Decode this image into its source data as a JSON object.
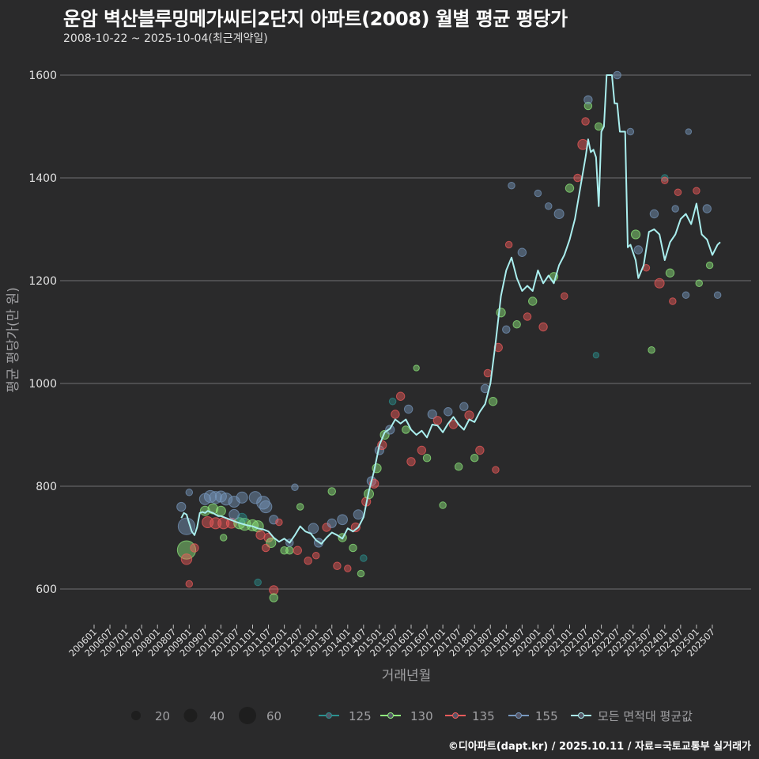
{
  "title": "운암 벽산블루밍메가씨티2단지 아파트(2008) 월별 평균 평당가",
  "subtitle": "2008-10-22 ~ 2025-10-04(최근계약일)",
  "footer": "©디아파트(dapt.kr) / 2025.10.11 / 자료=국토교통부 실거래가",
  "colors": {
    "background": "#2a2a2b",
    "grid": "#707073",
    "text": "#e0e0e0",
    "axis_label": "#a0a0a3",
    "125": "#2b908f",
    "130": "#90ee7e",
    "135": "#f45b5b",
    "155": "#7798bf",
    "avg": "#aaeeee"
  },
  "chart_data": {
    "type": "scatter+line",
    "title": "운암 벽산블루밍메가씨티2단지 아파트(2008) 월별 평균 평당가",
    "subtitle": "2008-10-22 ~ 2025-10-04(최근계약일)",
    "xlabel": "거래년월",
    "ylabel": "평균 평당가(만 원)",
    "ylim": [
      540,
      1620
    ],
    "yticks": [
      600,
      800,
      1000,
      1200,
      1400,
      1600
    ],
    "grid": true,
    "legend_position": "bottom",
    "x_ticks": [
      "200601",
      "200607",
      "200701",
      "200707",
      "200801",
      "200807",
      "200901",
      "200907",
      "201001",
      "201007",
      "201101",
      "201107",
      "201201",
      "201207",
      "201301",
      "201307",
      "201401",
      "201407",
      "201501",
      "201507",
      "201601",
      "201607",
      "201701",
      "201707",
      "201801",
      "201807",
      "201901",
      "201907",
      "202001",
      "202007",
      "202101",
      "202107",
      "202201",
      "202207",
      "202301",
      "202307",
      "202401",
      "202407",
      "202501",
      "202507"
    ],
    "size_legend": {
      "title": "",
      "values": [
        20,
        40,
        60
      ]
    },
    "series_legend": [
      {
        "name": "125",
        "key": "125"
      },
      {
        "name": "130",
        "key": "130"
      },
      {
        "name": "135",
        "key": "135"
      },
      {
        "name": "155",
        "key": "155"
      },
      {
        "name": "모든 면적대 평균값",
        "key": "avg"
      }
    ],
    "average_line": {
      "name": "모든 면적대 평균값",
      "x": [
        "200810",
        "200811",
        "200812",
        "200901",
        "200902",
        "200903",
        "200904",
        "200905",
        "200906",
        "200907",
        "200908",
        "200909",
        "200910",
        "200911",
        "200912",
        "201001",
        "201003",
        "201005",
        "201007",
        "201009",
        "201011",
        "201101",
        "201103",
        "201105",
        "201107",
        "201109",
        "201111",
        "201201",
        "201203",
        "201205",
        "201207",
        "201209",
        "201211",
        "201301",
        "201303",
        "201305",
        "201307",
        "201309",
        "201311",
        "201401",
        "201403",
        "201405",
        "201407",
        "201409",
        "201411",
        "201501",
        "201503",
        "201505",
        "201507",
        "201509",
        "201511",
        "201601",
        "201603",
        "201605",
        "201607",
        "201609",
        "201611",
        "201701",
        "201703",
        "201705",
        "201707",
        "201709",
        "201711",
        "201801",
        "201803",
        "201805",
        "201807",
        "201809",
        "201811",
        "201901",
        "201903",
        "201905",
        "201907",
        "201909",
        "201911",
        "202001",
        "202003",
        "202005",
        "202007",
        "202009",
        "202011",
        "202101",
        "202103",
        "202105",
        "202107",
        "202108",
        "202109",
        "202110",
        "202111",
        "202112",
        "202201",
        "202202",
        "202203",
        "202204",
        "202205",
        "202206",
        "202207",
        "202208",
        "202209",
        "202210",
        "202211",
        "202212",
        "202301",
        "202302",
        "202303",
        "202305",
        "202307",
        "202309",
        "202311",
        "202401",
        "202403",
        "202405",
        "202407",
        "202409",
        "202411",
        "202412",
        "202501",
        "202503",
        "202505",
        "202507",
        "202509",
        "202510"
      ],
      "y": [
        738,
        748,
        745,
        728,
        712,
        705,
        720,
        748,
        750,
        748,
        752,
        750,
        748,
        745,
        742,
        742,
        738,
        734,
        730,
        727,
        724,
        722,
        718,
        716,
        712,
        700,
        692,
        698,
        690,
        705,
        722,
        712,
        708,
        695,
        688,
        700,
        710,
        705,
        698,
        718,
        712,
        720,
        740,
        790,
        830,
        880,
        905,
        912,
        930,
        922,
        930,
        910,
        900,
        908,
        895,
        920,
        918,
        905,
        922,
        935,
        920,
        910,
        930,
        925,
        945,
        960,
        1000,
        1080,
        1170,
        1220,
        1245,
        1205,
        1180,
        1190,
        1180,
        1220,
        1195,
        1210,
        1195,
        1230,
        1250,
        1280,
        1320,
        1380,
        1440,
        1475,
        1450,
        1455,
        1440,
        1345,
        1490,
        1500,
        1600,
        1600,
        1600,
        1545,
        1545,
        1490,
        1490,
        1490,
        1265,
        1270,
        1255,
        1240,
        1205,
        1230,
        1295,
        1300,
        1290,
        1240,
        1275,
        1290,
        1320,
        1330,
        1310,
        1330,
        1350,
        1290,
        1280,
        1250,
        1270,
        1275
      ],
      "ranges_comment": "values read off gridlines"
    },
    "scatter": [
      {
        "series": "155",
        "x": "200810",
        "y": 760,
        "size": 14
      },
      {
        "series": "155",
        "x": "200812",
        "y": 722,
        "size": 50
      },
      {
        "series": "130",
        "x": "200812",
        "y": 676,
        "size": 60
      },
      {
        "series": "135",
        "x": "200812",
        "y": 658,
        "size": 20
      },
      {
        "series": "135",
        "x": "200901",
        "y": 610,
        "size": 8
      },
      {
        "series": "155",
        "x": "200901",
        "y": 788,
        "size": 8
      },
      {
        "series": "135",
        "x": "200903",
        "y": 680,
        "size": 12
      },
      {
        "series": "155",
        "x": "200907",
        "y": 775,
        "size": 22
      },
      {
        "series": "155",
        "x": "200909",
        "y": 780,
        "size": 26
      },
      {
        "series": "155",
        "x": "200911",
        "y": 778,
        "size": 26
      },
      {
        "series": "155",
        "x": "201001",
        "y": 780,
        "size": 22
      },
      {
        "series": "155",
        "x": "201003",
        "y": 775,
        "size": 26
      },
      {
        "series": "130",
        "x": "200907",
        "y": 752,
        "size": 16
      },
      {
        "series": "130",
        "x": "200910",
        "y": 756,
        "size": 18
      },
      {
        "series": "130",
        "x": "201001",
        "y": 752,
        "size": 16
      },
      {
        "series": "135",
        "x": "200908",
        "y": 730,
        "size": 22
      },
      {
        "series": "135",
        "x": "200911",
        "y": 728,
        "size": 22
      },
      {
        "series": "135",
        "x": "201002",
        "y": 728,
        "size": 22
      },
      {
        "series": "135",
        "x": "201005",
        "y": 728,
        "size": 18
      },
      {
        "series": "155",
        "x": "201006",
        "y": 770,
        "size": 22
      },
      {
        "series": "155",
        "x": "201009",
        "y": 778,
        "size": 22
      },
      {
        "series": "155",
        "x": "201102",
        "y": 778,
        "size": 26
      },
      {
        "series": "155",
        "x": "201105",
        "y": 768,
        "size": 30
      },
      {
        "series": "155",
        "x": "201106",
        "y": 760,
        "size": 26
      },
      {
        "series": "130",
        "x": "201008",
        "y": 728,
        "size": 22
      },
      {
        "series": "130",
        "x": "201010",
        "y": 726,
        "size": 26
      },
      {
        "series": "130",
        "x": "201101",
        "y": 724,
        "size": 22
      },
      {
        "series": "130",
        "x": "201103",
        "y": 722,
        "size": 22
      },
      {
        "series": "125",
        "x": "201009",
        "y": 738,
        "size": 16
      },
      {
        "series": "135",
        "x": "201104",
        "y": 705,
        "size": 14
      },
      {
        "series": "135",
        "x": "201107",
        "y": 700,
        "size": 14
      },
      {
        "series": "130",
        "x": "201108",
        "y": 690,
        "size": 16
      },
      {
        "series": "135",
        "x": "201106",
        "y": 680,
        "size": 10
      },
      {
        "series": "130",
        "x": "201002",
        "y": 700,
        "size": 8
      },
      {
        "series": "155",
        "x": "201006",
        "y": 745,
        "size": 18
      },
      {
        "series": "135",
        "x": "201109",
        "y": 598,
        "size": 14
      },
      {
        "series": "130",
        "x": "201109",
        "y": 583,
        "size": 12
      },
      {
        "series": "125",
        "x": "201103",
        "y": 613,
        "size": 8
      },
      {
        "series": "155",
        "x": "201109",
        "y": 735,
        "size": 14
      },
      {
        "series": "135",
        "x": "201111",
        "y": 730,
        "size": 8
      },
      {
        "series": "155",
        "x": "201205",
        "y": 798,
        "size": 8
      },
      {
        "series": "130",
        "x": "201201",
        "y": 675,
        "size": 10
      },
      {
        "series": "130",
        "x": "201203",
        "y": 675,
        "size": 10
      },
      {
        "series": "135",
        "x": "201206",
        "y": 675,
        "size": 12
      },
      {
        "series": "155",
        "x": "201203",
        "y": 690,
        "size": 10
      },
      {
        "series": "130",
        "x": "201207",
        "y": 760,
        "size": 8
      },
      {
        "series": "135",
        "x": "201210",
        "y": 655,
        "size": 10
      },
      {
        "series": "155",
        "x": "201212",
        "y": 718,
        "size": 18
      },
      {
        "series": "135",
        "x": "201301",
        "y": 665,
        "size": 8
      },
      {
        "series": "155",
        "x": "201302",
        "y": 690,
        "size": 14
      },
      {
        "series": "135",
        "x": "201305",
        "y": 720,
        "size": 12
      },
      {
        "series": "155",
        "x": "201307",
        "y": 728,
        "size": 14
      },
      {
        "series": "130",
        "x": "201307",
        "y": 790,
        "size": 10
      },
      {
        "series": "135",
        "x": "201309",
        "y": 645,
        "size": 10
      },
      {
        "series": "155",
        "x": "201311",
        "y": 735,
        "size": 18
      },
      {
        "series": "130",
        "x": "201311",
        "y": 700,
        "size": 12
      },
      {
        "series": "135",
        "x": "201401",
        "y": 640,
        "size": 8
      },
      {
        "series": "130",
        "x": "201403",
        "y": 680,
        "size": 10
      },
      {
        "series": "135",
        "x": "201404",
        "y": 720,
        "size": 14
      },
      {
        "series": "155",
        "x": "201405",
        "y": 745,
        "size": 16
      },
      {
        "series": "130",
        "x": "201406",
        "y": 630,
        "size": 8
      },
      {
        "series": "125",
        "x": "201407",
        "y": 660,
        "size": 8
      },
      {
        "series": "135",
        "x": "201408",
        "y": 770,
        "size": 14
      },
      {
        "series": "130",
        "x": "201409",
        "y": 785,
        "size": 16
      },
      {
        "series": "155",
        "x": "201410",
        "y": 810,
        "size": 14
      },
      {
        "series": "135",
        "x": "201411",
        "y": 805,
        "size": 14
      },
      {
        "series": "130",
        "x": "201412",
        "y": 835,
        "size": 14
      },
      {
        "series": "155",
        "x": "201501",
        "y": 870,
        "size": 14
      },
      {
        "series": "135",
        "x": "201502",
        "y": 880,
        "size": 14
      },
      {
        "series": "130",
        "x": "201503",
        "y": 900,
        "size": 14
      },
      {
        "series": "155",
        "x": "201505",
        "y": 910,
        "size": 14
      },
      {
        "series": "135",
        "x": "201507",
        "y": 940,
        "size": 12
      },
      {
        "series": "125",
        "x": "201506",
        "y": 965,
        "size": 8
      },
      {
        "series": "135",
        "x": "201509",
        "y": 975,
        "size": 12
      },
      {
        "series": "130",
        "x": "201511",
        "y": 910,
        "size": 10
      },
      {
        "series": "155",
        "x": "201512",
        "y": 950,
        "size": 12
      },
      {
        "series": "135",
        "x": "201601",
        "y": 848,
        "size": 12
      },
      {
        "series": "130",
        "x": "201603",
        "y": 1030,
        "size": 6
      },
      {
        "series": "135",
        "x": "201605",
        "y": 870,
        "size": 12
      },
      {
        "series": "130",
        "x": "201607",
        "y": 855,
        "size": 10
      },
      {
        "series": "155",
        "x": "201609",
        "y": 940,
        "size": 14
      },
      {
        "series": "135",
        "x": "201611",
        "y": 928,
        "size": 12
      },
      {
        "series": "130",
        "x": "201701",
        "y": 763,
        "size": 8
      },
      {
        "series": "155",
        "x": "201703",
        "y": 945,
        "size": 12
      },
      {
        "series": "135",
        "x": "201705",
        "y": 920,
        "size": 12
      },
      {
        "series": "130",
        "x": "201707",
        "y": 838,
        "size": 10
      },
      {
        "series": "155",
        "x": "201709",
        "y": 955,
        "size": 12
      },
      {
        "series": "135",
        "x": "201711",
        "y": 938,
        "size": 14
      },
      {
        "series": "130",
        "x": "201801",
        "y": 855,
        "size": 10
      },
      {
        "series": "135",
        "x": "201803",
        "y": 870,
        "size": 12
      },
      {
        "series": "155",
        "x": "201805",
        "y": 990,
        "size": 12
      },
      {
        "series": "135",
        "x": "201806",
        "y": 1020,
        "size": 10
      },
      {
        "series": "130",
        "x": "201808",
        "y": 965,
        "size": 12
      },
      {
        "series": "135",
        "x": "201809",
        "y": 832,
        "size": 8
      },
      {
        "series": "135",
        "x": "201810",
        "y": 1070,
        "size": 12
      },
      {
        "series": "130",
        "x": "201811",
        "y": 1138,
        "size": 14
      },
      {
        "series": "155",
        "x": "201901",
        "y": 1105,
        "size": 10
      },
      {
        "series": "135",
        "x": "201902",
        "y": 1270,
        "size": 8
      },
      {
        "series": "155",
        "x": "201903",
        "y": 1385,
        "size": 8
      },
      {
        "series": "130",
        "x": "201905",
        "y": 1115,
        "size": 10
      },
      {
        "series": "155",
        "x": "201907",
        "y": 1255,
        "size": 12
      },
      {
        "series": "135",
        "x": "201909",
        "y": 1130,
        "size": 10
      },
      {
        "series": "130",
        "x": "201911",
        "y": 1160,
        "size": 12
      },
      {
        "series": "155",
        "x": "202001",
        "y": 1370,
        "size": 8
      },
      {
        "series": "135",
        "x": "202003",
        "y": 1110,
        "size": 12
      },
      {
        "series": "155",
        "x": "202005",
        "y": 1345,
        "size": 8
      },
      {
        "series": "130",
        "x": "202007",
        "y": 1208,
        "size": 12
      },
      {
        "series": "155",
        "x": "202009",
        "y": 1330,
        "size": 16
      },
      {
        "series": "135",
        "x": "202011",
        "y": 1170,
        "size": 8
      },
      {
        "series": "130",
        "x": "202101",
        "y": 1380,
        "size": 12
      },
      {
        "series": "135",
        "x": "202104",
        "y": 1400,
        "size": 10
      },
      {
        "series": "135",
        "x": "202106",
        "y": 1465,
        "size": 18
      },
      {
        "series": "135",
        "x": "202107",
        "y": 1510,
        "size": 10
      },
      {
        "series": "130",
        "x": "202108",
        "y": 1540,
        "size": 10
      },
      {
        "series": "155",
        "x": "202108",
        "y": 1552,
        "size": 12
      },
      {
        "series": "125",
        "x": "202111",
        "y": 1055,
        "size": 6
      },
      {
        "series": "130",
        "x": "202112",
        "y": 1500,
        "size": 10
      },
      {
        "series": "155",
        "x": "202207",
        "y": 1600,
        "size": 10
      },
      {
        "series": "155",
        "x": "202212",
        "y": 1490,
        "size": 8
      },
      {
        "series": "130",
        "x": "202302",
        "y": 1290,
        "size": 14
      },
      {
        "series": "155",
        "x": "202303",
        "y": 1260,
        "size": 12
      },
      {
        "series": "135",
        "x": "202306",
        "y": 1225,
        "size": 8
      },
      {
        "series": "130",
        "x": "202308",
        "y": 1065,
        "size": 8
      },
      {
        "series": "155",
        "x": "202309",
        "y": 1330,
        "size": 12
      },
      {
        "series": "135",
        "x": "202311",
        "y": 1195,
        "size": 16
      },
      {
        "series": "125",
        "x": "202401",
        "y": 1400,
        "size": 8
      },
      {
        "series": "135",
        "x": "202401",
        "y": 1395,
        "size": 8
      },
      {
        "series": "130",
        "x": "202403",
        "y": 1215,
        "size": 12
      },
      {
        "series": "135",
        "x": "202404",
        "y": 1160,
        "size": 8
      },
      {
        "series": "155",
        "x": "202405",
        "y": 1340,
        "size": 8
      },
      {
        "series": "135",
        "x": "202406",
        "y": 1372,
        "size": 8
      },
      {
        "series": "155",
        "x": "202409",
        "y": 1172,
        "size": 8
      },
      {
        "series": "155",
        "x": "202410",
        "y": 1490,
        "size": 6
      },
      {
        "series": "135",
        "x": "202501",
        "y": 1375,
        "size": 8
      },
      {
        "series": "130",
        "x": "202502",
        "y": 1195,
        "size": 8
      },
      {
        "series": "155",
        "x": "202505",
        "y": 1340,
        "size": 12
      },
      {
        "series": "130",
        "x": "202506",
        "y": 1230,
        "size": 8
      },
      {
        "series": "155",
        "x": "202509",
        "y": 1172,
        "size": 8
      }
    ]
  }
}
